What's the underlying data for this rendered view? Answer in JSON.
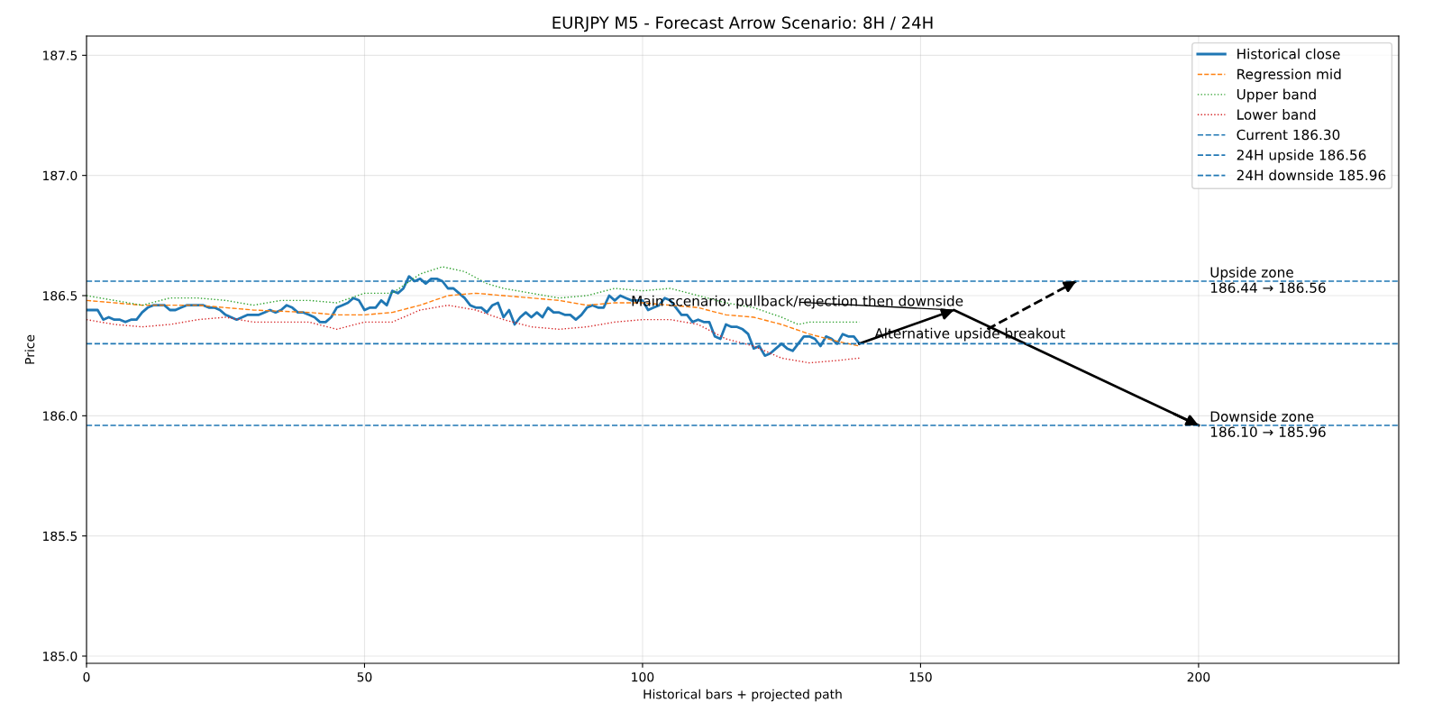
{
  "chart_data": {
    "type": "line",
    "title": "EURJPY M5 - Forecast Arrow Scenario: 8H / 24H",
    "xlabel": "Historical bars + projected path",
    "ylabel": "Price",
    "xlim": [
      0,
      236
    ],
    "xticks": [
      0,
      50,
      100,
      150,
      200
    ],
    "ylim": [
      184.97,
      187.58
    ],
    "yticks": [
      {
        "value": 185.0,
        "label": "185.0"
      },
      {
        "value": 185.5,
        "label": "185.5"
      },
      {
        "value": 186.0,
        "label": "186.0"
      },
      {
        "value": 186.5,
        "label": "186.5"
      },
      {
        "value": 187.0,
        "label": "187.0"
      },
      {
        "value": 187.5,
        "label": "187.5"
      }
    ],
    "grid": true,
    "legend": "top right",
    "series": [
      {
        "name": "Historical close",
        "color": "#1f77b4",
        "line_style": "solid",
        "x": [
          0,
          1,
          2,
          3,
          4,
          5,
          6,
          7,
          8,
          9,
          10,
          11,
          12,
          13,
          14,
          15,
          16,
          17,
          18,
          19,
          20,
          21,
          22,
          23,
          24,
          25,
          26,
          27,
          28,
          29,
          30,
          31,
          32,
          33,
          34,
          35,
          36,
          37,
          38,
          39,
          40,
          41,
          42,
          43,
          44,
          45,
          46,
          47,
          48,
          49,
          50,
          51,
          52,
          53,
          54,
          55,
          56,
          57,
          58,
          59,
          60,
          61,
          62,
          63,
          64,
          65,
          66,
          67,
          68,
          69,
          70,
          71,
          72,
          73,
          74,
          75,
          76,
          77,
          78,
          79,
          80,
          81,
          82,
          83,
          84,
          85,
          86,
          87,
          88,
          89,
          90,
          91,
          92,
          93,
          94,
          95,
          96,
          97,
          98,
          99,
          100,
          101,
          102,
          103,
          104,
          105,
          106,
          107,
          108,
          109,
          110,
          111,
          112,
          113,
          114,
          115,
          116,
          117,
          118,
          119,
          120,
          121,
          122,
          123,
          124,
          125,
          126,
          127,
          128,
          129,
          130,
          131,
          132,
          133,
          134,
          135,
          136,
          137,
          138,
          139
        ],
        "values": [
          186.44,
          186.44,
          186.44,
          186.4,
          186.41,
          186.4,
          186.4,
          186.39,
          186.4,
          186.4,
          186.43,
          186.45,
          186.46,
          186.46,
          186.46,
          186.44,
          186.44,
          186.45,
          186.46,
          186.46,
          186.46,
          186.46,
          186.45,
          186.45,
          186.44,
          186.42,
          186.41,
          186.4,
          186.41,
          186.42,
          186.42,
          186.42,
          186.43,
          186.44,
          186.43,
          186.44,
          186.46,
          186.45,
          186.43,
          186.43,
          186.42,
          186.41,
          186.39,
          186.39,
          186.41,
          186.45,
          186.46,
          186.47,
          186.49,
          186.48,
          186.44,
          186.45,
          186.45,
          186.48,
          186.46,
          186.52,
          186.51,
          186.53,
          186.58,
          186.56,
          186.57,
          186.55,
          186.57,
          186.57,
          186.56,
          186.53,
          186.53,
          186.51,
          186.49,
          186.46,
          186.45,
          186.45,
          186.43,
          186.46,
          186.47,
          186.41,
          186.44,
          186.38,
          186.41,
          186.43,
          186.41,
          186.43,
          186.41,
          186.45,
          186.43,
          186.43,
          186.42,
          186.42,
          186.4,
          186.42,
          186.45,
          186.46,
          186.45,
          186.45,
          186.5,
          186.48,
          186.5,
          186.49,
          186.48,
          186.48,
          186.48,
          186.44,
          186.45,
          186.46,
          186.49,
          186.48,
          186.45,
          186.42,
          186.42,
          186.39,
          186.4,
          186.39,
          186.39,
          186.33,
          186.32,
          186.38,
          186.37,
          186.37,
          186.36,
          186.34,
          186.28,
          186.29,
          186.25,
          186.26,
          186.28,
          186.3,
          186.28,
          186.27,
          186.3,
          186.33,
          186.33,
          186.32,
          186.29,
          186.33,
          186.32,
          186.3,
          186.34,
          186.33,
          186.33,
          186.3
        ]
      },
      {
        "name": "Regression mid",
        "color": "#ff7f0e",
        "line_style": "dashed",
        "x": [
          0,
          10,
          20,
          30,
          40,
          45,
          50,
          55,
          60,
          65,
          70,
          75,
          80,
          85,
          90,
          95,
          100,
          105,
          110,
          115,
          120,
          125,
          130,
          135,
          139
        ],
        "values": [
          186.48,
          186.46,
          186.46,
          186.44,
          186.43,
          186.42,
          186.42,
          186.43,
          186.46,
          186.5,
          186.51,
          186.5,
          186.49,
          186.48,
          186.46,
          186.47,
          186.47,
          186.46,
          186.45,
          186.42,
          186.41,
          186.38,
          186.34,
          186.31,
          186.29
        ]
      },
      {
        "name": "Upper band",
        "color": "#2ca02c",
        "line_style": "dotted",
        "x": [
          0,
          5,
          10,
          15,
          20,
          25,
          30,
          35,
          40,
          45,
          50,
          55,
          60,
          64,
          68,
          72,
          75,
          80,
          85,
          90,
          95,
          100,
          105,
          110,
          115,
          120,
          125,
          128,
          130,
          135,
          139
        ],
        "values": [
          186.5,
          186.48,
          186.46,
          186.49,
          186.49,
          186.48,
          186.46,
          186.48,
          186.48,
          186.47,
          186.51,
          186.51,
          186.59,
          186.62,
          186.6,
          186.55,
          186.53,
          186.51,
          186.49,
          186.5,
          186.53,
          186.52,
          186.53,
          186.5,
          186.47,
          186.45,
          186.41,
          186.38,
          186.39,
          186.39,
          186.39
        ]
      },
      {
        "name": "Lower band",
        "color": "#d62728",
        "line_style": "dotted",
        "x": [
          0,
          5,
          10,
          15,
          20,
          25,
          30,
          35,
          40,
          45,
          50,
          55,
          60,
          65,
          70,
          75,
          80,
          85,
          90,
          95,
          100,
          105,
          110,
          115,
          120,
          125,
          130,
          135,
          139
        ],
        "values": [
          186.4,
          186.38,
          186.37,
          186.38,
          186.4,
          186.41,
          186.39,
          186.39,
          186.39,
          186.36,
          186.39,
          186.39,
          186.44,
          186.46,
          186.44,
          186.4,
          186.37,
          186.36,
          186.37,
          186.39,
          186.4,
          186.4,
          186.38,
          186.32,
          186.29,
          186.24,
          186.22,
          186.23,
          186.24
        ]
      },
      {
        "color": "#000000",
        "line_style": "solid",
        "x": [
          139,
          156,
          200
        ],
        "values": [
          186.3,
          186.44,
          185.96
        ]
      },
      {
        "color": "#000000",
        "line_style": "dashed",
        "x": [
          162,
          178
        ],
        "values": [
          186.36,
          186.56
        ]
      }
    ],
    "ref_lines": [
      {
        "axis": "y",
        "value": 186.3,
        "label": "Current 186.30",
        "color": "#1f77b4",
        "line_style": "dashed"
      },
      {
        "axis": "y",
        "value": 186.56,
        "label": "24H upside 186.56",
        "color": "#1f77b4",
        "line_style": "dashed"
      },
      {
        "axis": "y",
        "value": 185.96,
        "label": "24H downside 185.96",
        "color": "#1f77b4",
        "line_style": "dashed"
      }
    ],
    "annotations": [
      {
        "text": "Main scenario: pullback/rejection then downside",
        "x": 156,
        "y": 186.44
      },
      {
        "text": "Alternative upside breakout",
        "x": 139,
        "y": 186.3
      },
      {
        "text": "Upside zone\n186.44 → 186.56",
        "x": 202,
        "y": 186.56
      },
      {
        "text": "Downside zone\n186.10 → 185.96",
        "x": 202,
        "y": 185.96
      }
    ]
  }
}
